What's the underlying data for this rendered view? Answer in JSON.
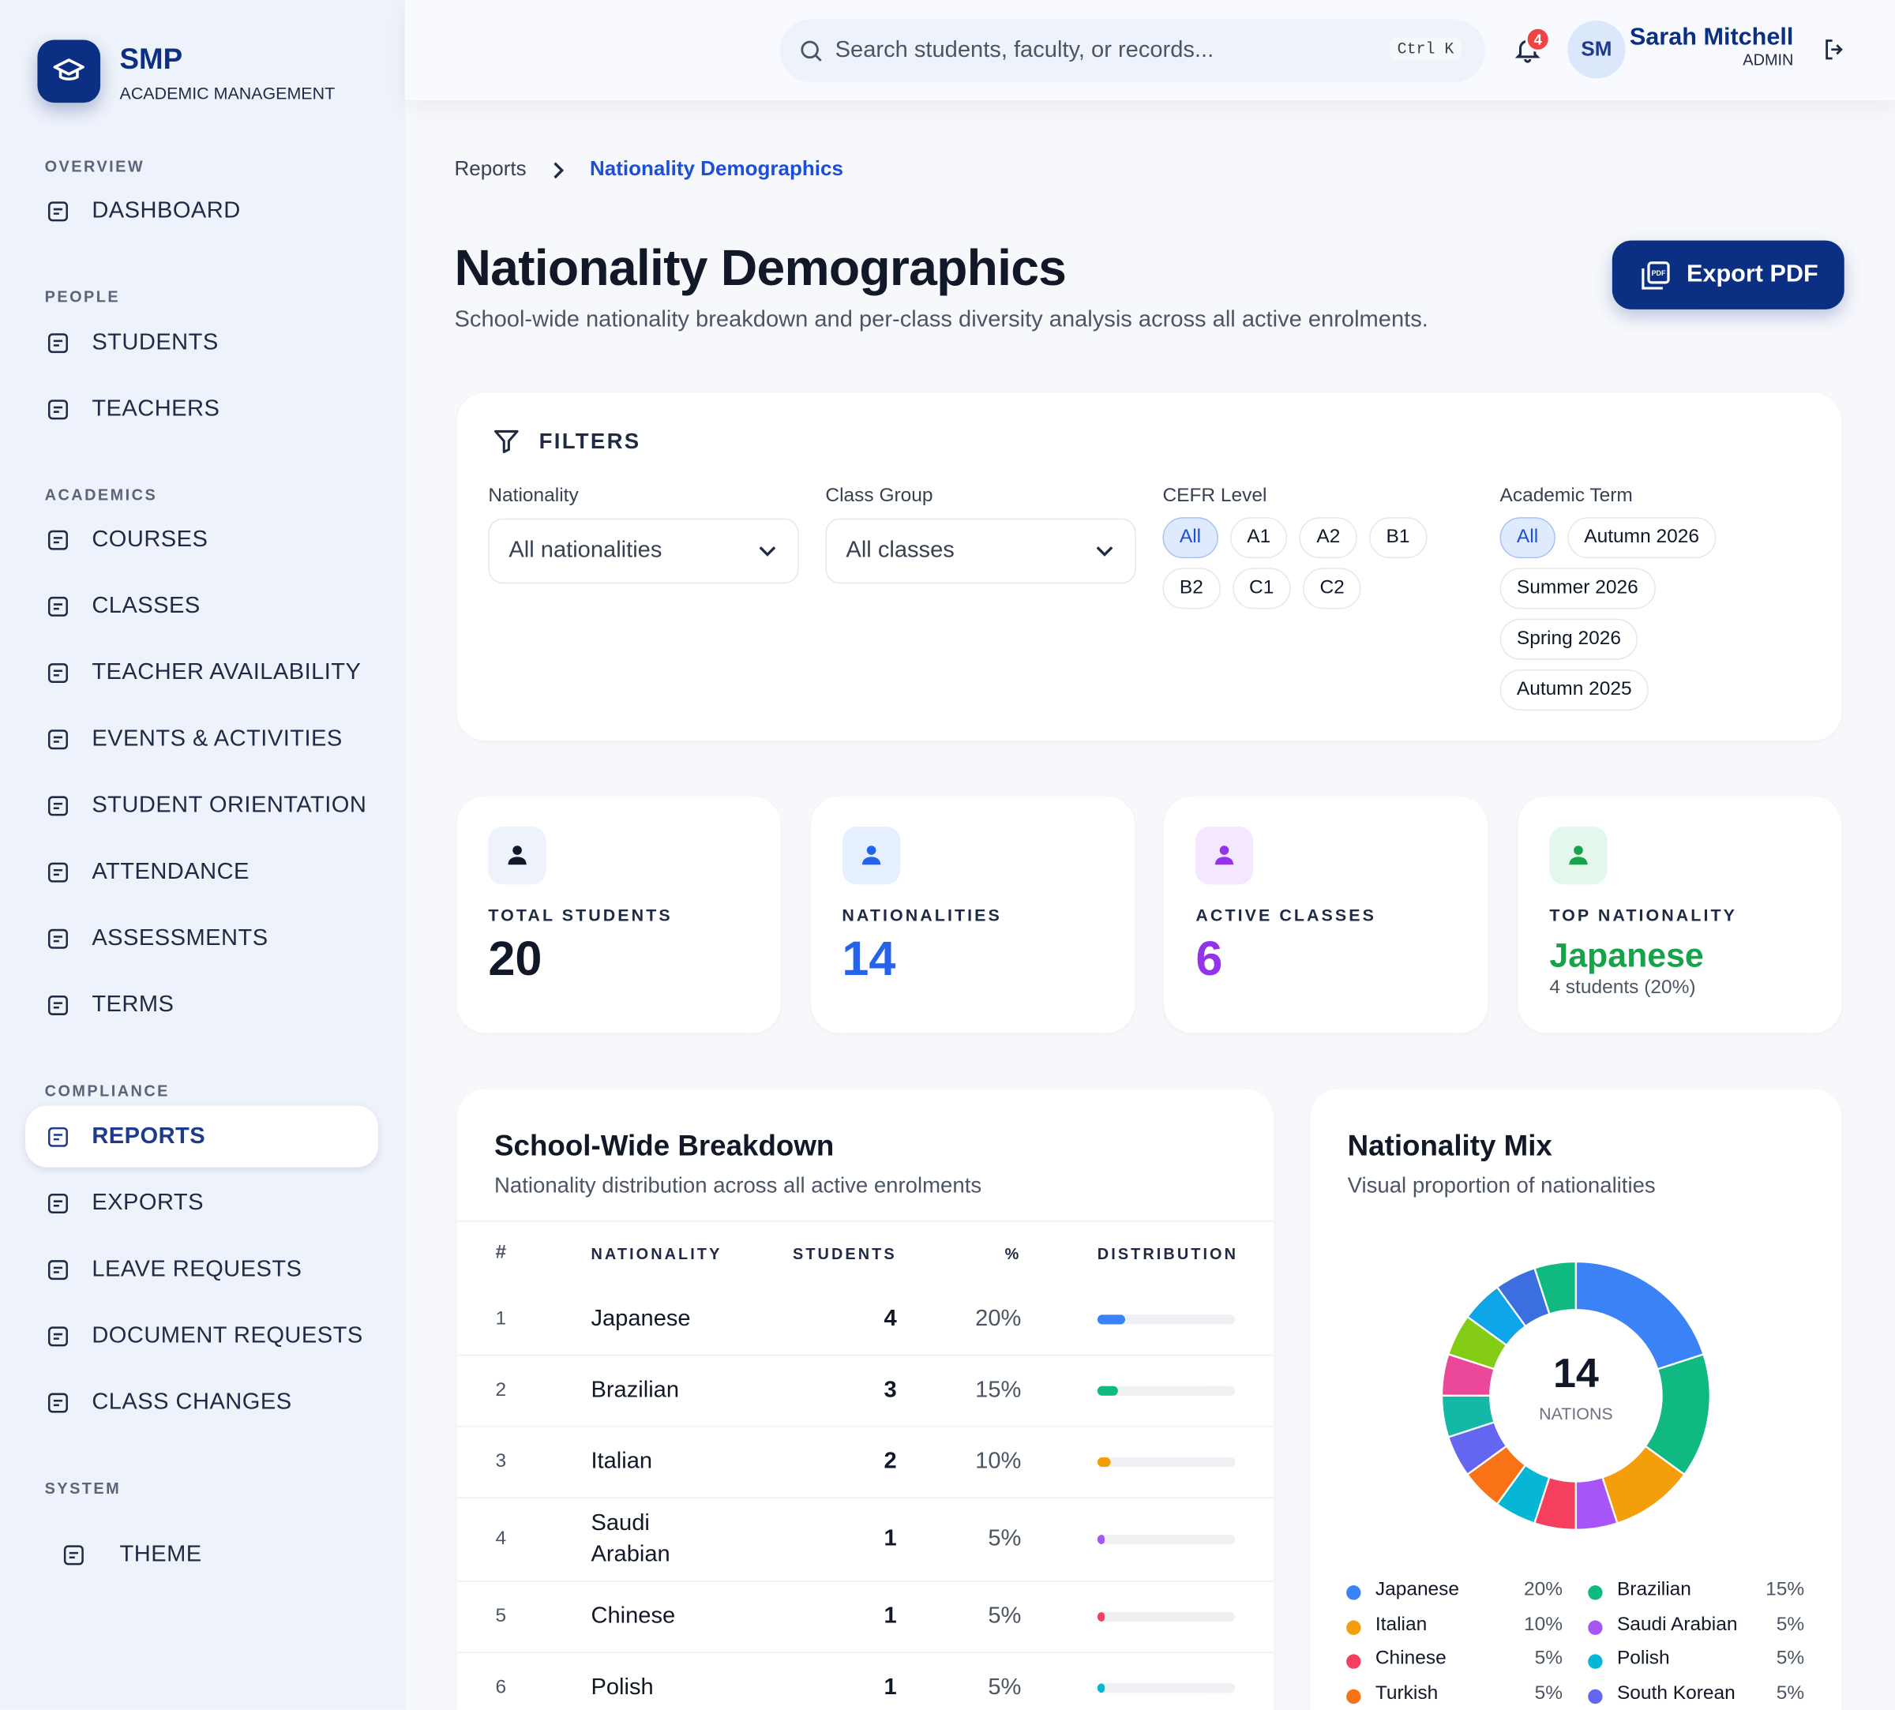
{
  "brand": {
    "name": "SMP",
    "subtitle": "ACADEMIC MANAGEMENT"
  },
  "nav": [
    {
      "section": "OVERVIEW",
      "items": [
        {
          "label": "DASHBOARD"
        }
      ]
    },
    {
      "section": "PEOPLE",
      "items": [
        {
          "label": "STUDENTS"
        },
        {
          "label": "TEACHERS"
        }
      ]
    },
    {
      "section": "ACADEMICS",
      "items": [
        {
          "label": "COURSES"
        },
        {
          "label": "CLASSES"
        },
        {
          "label": "TEACHER AVAILABILITY"
        },
        {
          "label": "EVENTS & ACTIVITIES"
        },
        {
          "label": "STUDENT ORIENTATION"
        },
        {
          "label": "ATTENDANCE"
        },
        {
          "label": "ASSESSMENTS"
        },
        {
          "label": "TERMS"
        }
      ]
    },
    {
      "section": "COMPLIANCE",
      "items": [
        {
          "label": "REPORTS",
          "active": true
        },
        {
          "label": "EXPORTS"
        },
        {
          "label": "LEAVE REQUESTS"
        },
        {
          "label": "DOCUMENT REQUESTS"
        },
        {
          "label": "CLASS CHANGES"
        }
      ]
    },
    {
      "section": "SYSTEM",
      "items": [
        {
          "label": "THEME"
        }
      ]
    }
  ],
  "search": {
    "placeholder": "Search students, faculty, or records...",
    "shortcut": "Ctrl K"
  },
  "notifications": {
    "count": 4
  },
  "user": {
    "initials": "SM",
    "name": "Sarah Mitchell",
    "role": "ADMIN"
  },
  "breadcrumb": [
    "Reports",
    "Nationality Demographics"
  ],
  "page": {
    "title": "Nationality Demographics",
    "subtitle": "School-wide nationality breakdown and per-class diversity analysis across all active enrolments.",
    "export": "Export PDF"
  },
  "filters": {
    "title": "FILTERS",
    "nationality": {
      "label": "Nationality",
      "value": "All nationalities"
    },
    "class_group": {
      "label": "Class Group",
      "value": "All classes"
    },
    "cefr": {
      "label": "CEFR Level",
      "options": [
        "All",
        "A1",
        "A2",
        "B1",
        "B2",
        "C1",
        "C2"
      ],
      "selected_index": 0
    },
    "term": {
      "label": "Academic Term",
      "options": [
        "All",
        "Autumn 2026",
        "Summer 2026",
        "Spring 2026",
        "Autumn 2025"
      ],
      "selected_index": 0
    }
  },
  "stats": [
    {
      "label": "TOTAL STUDENTS",
      "value": 20,
      "color": "#111827"
    },
    {
      "label": "NATIONALITIES",
      "value": 14,
      "color": "#2563eb"
    },
    {
      "label": "ACTIVE CLASSES",
      "value": 6,
      "color": "#9333ea"
    },
    {
      "label": "TOP NATIONALITY",
      "value": "Japanese",
      "note": "4 students (20%)",
      "color": "#16a34a"
    }
  ],
  "breakdown": {
    "title": "School-Wide Breakdown",
    "subtitle": "Nationality distribution across all active enrolments",
    "columns": [
      "#",
      "NATIONALITY",
      "STUDENTS",
      "%",
      "DISTRIBUTION"
    ],
    "rows": [
      {
        "rank": 1,
        "nationality": "Japanese",
        "students": 4,
        "percent": 20,
        "percent_label": "20%",
        "color": "#3b82f6"
      },
      {
        "rank": 2,
        "nationality": "Brazilian",
        "students": 3,
        "percent": 15,
        "percent_label": "15%",
        "color": "#10b981"
      },
      {
        "rank": 3,
        "nationality": "Italian",
        "students": 2,
        "percent": 10,
        "percent_label": "10%",
        "color": "#f59e0b"
      },
      {
        "rank": 4,
        "nationality": "Saudi Arabian",
        "students": 1,
        "percent": 5,
        "percent_label": "5%",
        "color": "#a855f7"
      },
      {
        "rank": 5,
        "nationality": "Chinese",
        "students": 1,
        "percent": 5,
        "percent_label": "5%",
        "color": "#f43f5e"
      },
      {
        "rank": 6,
        "nationality": "Polish",
        "students": 1,
        "percent": 5,
        "percent_label": "5%",
        "color": "#06b6d4"
      }
    ]
  },
  "mix": {
    "title": "Nationality Mix",
    "subtitle": "Visual proportion of nationalities",
    "center_value": 14,
    "center_label": "NATIONS",
    "chart_data": {
      "type": "pie",
      "donut": true,
      "categories": [
        "Japanese",
        "Brazilian",
        "Italian",
        "Saudi Arabian",
        "Chinese",
        "Polish",
        "Turkish",
        "South Korean",
        null,
        null,
        null,
        null,
        null,
        null
      ],
      "values": [
        20,
        15,
        10,
        5,
        5,
        5,
        5,
        5,
        5,
        5,
        5,
        5,
        5,
        5
      ],
      "value_labels": [
        "20%",
        "15%",
        "10%",
        "5%",
        "5%",
        "5%",
        "5%",
        "5%",
        null,
        null,
        null,
        null,
        null,
        null
      ],
      "colors": [
        "#3b82f6",
        "#10b981",
        "#f59e0b",
        "#a855f7",
        "#f43f5e",
        "#06b6d4",
        "#f97316",
        "#6366f1",
        "#14b8a6",
        "#ec4899",
        "#84cc16",
        "#0ea5e9",
        "#3b6fe0",
        "#10b981"
      ]
    }
  }
}
